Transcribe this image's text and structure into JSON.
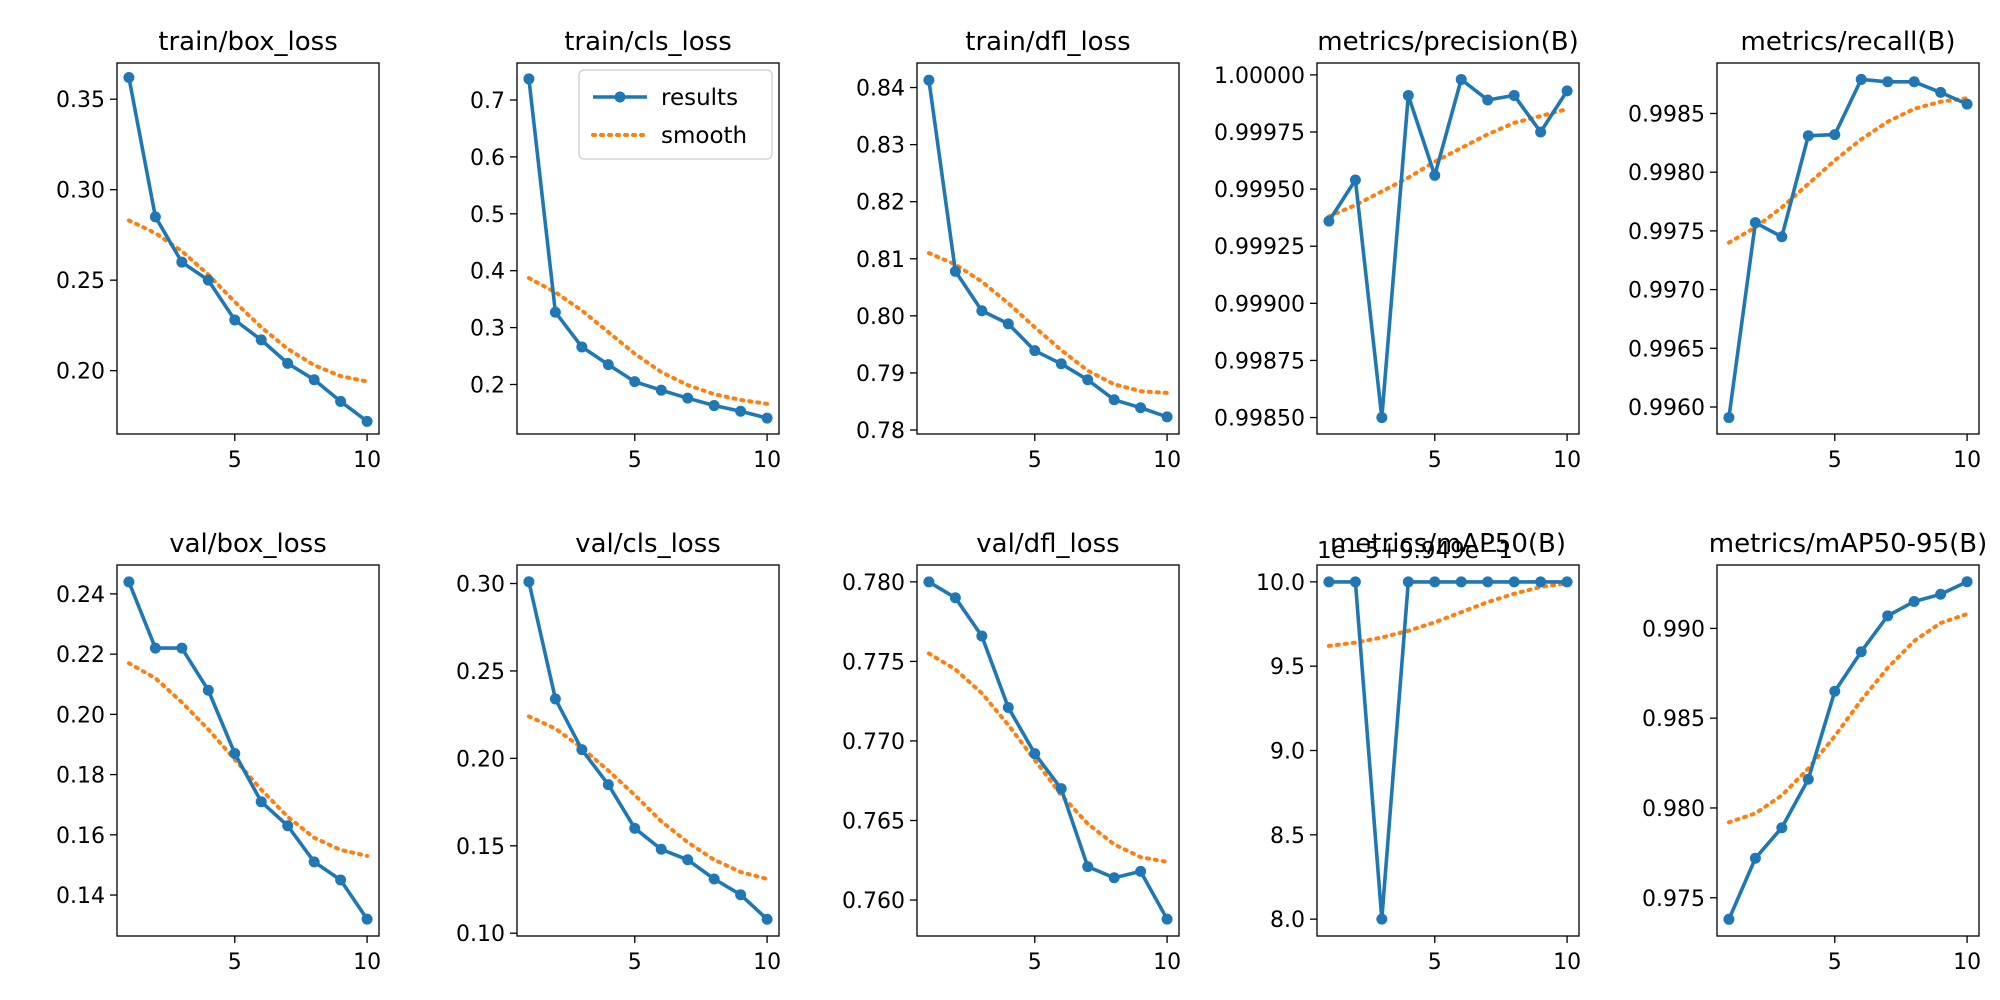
{
  "colors": {
    "results": "#1f77b4",
    "smooth": "#ff7f0e",
    "axes": "#000000",
    "background": "#ffffff"
  },
  "legend": {
    "panel": "train/cls_loss",
    "placement": "upper-right",
    "entries": [
      {
        "label": "results",
        "style": "line-with-markers"
      },
      {
        "label": "smooth",
        "style": "dotted"
      }
    ]
  },
  "chart_data": [
    {
      "type": "line",
      "title": "train/box_loss",
      "x": [
        1,
        2,
        3,
        4,
        5,
        6,
        7,
        8,
        9,
        10
      ],
      "series": [
        {
          "name": "results",
          "values": [
            0.362,
            0.285,
            0.26,
            0.25,
            0.228,
            0.217,
            0.204,
            0.195,
            0.183,
            0.172
          ]
        },
        {
          "name": "smooth",
          "values": [
            0.283,
            0.276,
            0.266,
            0.253,
            0.238,
            0.224,
            0.212,
            0.203,
            0.197,
            0.194
          ]
        }
      ],
      "xlim": [
        0.55,
        10.45
      ],
      "ylim": [
        0.165,
        0.37
      ],
      "xticks": [
        5,
        10
      ],
      "xtick_labels": [
        "5",
        "10"
      ],
      "yticks": [
        0.2,
        0.25,
        0.3,
        0.35
      ],
      "ytick_labels": [
        "0.20",
        "0.25",
        "0.30",
        "0.35"
      ],
      "offset_text": "",
      "grid": false
    },
    {
      "type": "line",
      "title": "train/cls_loss",
      "x": [
        1,
        2,
        3,
        4,
        5,
        6,
        7,
        8,
        9,
        10
      ],
      "series": [
        {
          "name": "results",
          "values": [
            0.737,
            0.327,
            0.266,
            0.235,
            0.205,
            0.19,
            0.176,
            0.163,
            0.153,
            0.141
          ]
        },
        {
          "name": "smooth",
          "values": [
            0.387,
            0.362,
            0.33,
            0.292,
            0.254,
            0.222,
            0.199,
            0.183,
            0.173,
            0.166
          ]
        }
      ],
      "xlim": [
        0.55,
        10.45
      ],
      "ylim": [
        0.113,
        0.765
      ],
      "xticks": [
        5,
        10
      ],
      "xtick_labels": [
        "5",
        "10"
      ],
      "yticks": [
        0.2,
        0.3,
        0.4,
        0.5,
        0.6,
        0.7
      ],
      "ytick_labels": [
        "0.2",
        "0.3",
        "0.4",
        "0.5",
        "0.6",
        "0.7"
      ],
      "offset_text": "",
      "grid": false
    },
    {
      "type": "line",
      "title": "train/dfl_loss",
      "x": [
        1,
        2,
        3,
        4,
        5,
        6,
        7,
        8,
        9,
        10
      ],
      "series": [
        {
          "name": "results",
          "values": [
            0.8413,
            0.8078,
            0.8009,
            0.7986,
            0.7939,
            0.7916,
            0.7888,
            0.7853,
            0.7839,
            0.7823
          ]
        },
        {
          "name": "smooth",
          "values": [
            0.811,
            0.809,
            0.806,
            0.8022,
            0.798,
            0.794,
            0.7904,
            0.788,
            0.7868,
            0.7865
          ]
        }
      ],
      "xlim": [
        0.55,
        10.45
      ],
      "ylim": [
        0.7793,
        0.8443
      ],
      "xticks": [
        5,
        10
      ],
      "xtick_labels": [
        "5",
        "10"
      ],
      "yticks": [
        0.78,
        0.79,
        0.8,
        0.81,
        0.82,
        0.83,
        0.84
      ],
      "ytick_labels": [
        "0.78",
        "0.79",
        "0.80",
        "0.81",
        "0.82",
        "0.83",
        "0.84"
      ],
      "offset_text": "",
      "grid": false
    },
    {
      "type": "line",
      "title": "metrics/precision(B)",
      "x": [
        1,
        2,
        3,
        4,
        5,
        6,
        7,
        8,
        9,
        10
      ],
      "series": [
        {
          "name": "results",
          "values": [
            0.99936,
            0.99954,
            0.9985,
            0.99991,
            0.99956,
            0.99998,
            0.99989,
            0.99991,
            0.99975,
            0.99993
          ]
        },
        {
          "name": "smooth",
          "values": [
            0.99938,
            0.99943,
            0.99949,
            0.99955,
            0.99962,
            0.99968,
            0.99974,
            0.99979,
            0.99982,
            0.99985
          ]
        }
      ],
      "xlim": [
        0.55,
        10.45
      ],
      "ylim": [
        0.998428,
        1.000052
      ],
      "xticks": [
        5,
        10
      ],
      "xtick_labels": [
        "5",
        "10"
      ],
      "yticks": [
        0.9985,
        0.99875,
        0.999,
        0.99925,
        0.9995,
        0.99975,
        1.0
      ],
      "ytick_labels": [
        "0.99850",
        "0.99875",
        "0.99900",
        "0.99925",
        "0.99950",
        "0.99975",
        "1.00000"
      ],
      "offset_text": "",
      "grid": false
    },
    {
      "type": "line",
      "title": "metrics/recall(B)",
      "x": [
        1,
        2,
        3,
        4,
        5,
        6,
        7,
        8,
        9,
        10
      ],
      "series": [
        {
          "name": "results",
          "values": [
            0.99591,
            0.99757,
            0.99745,
            0.99831,
            0.99832,
            0.99879,
            0.99877,
            0.99877,
            0.99868,
            0.99858
          ]
        },
        {
          "name": "smooth",
          "values": [
            0.9974,
            0.99753,
            0.9977,
            0.9979,
            0.9981,
            0.99828,
            0.99843,
            0.99854,
            0.9986,
            0.99863
          ]
        }
      ],
      "xlim": [
        0.55,
        10.45
      ],
      "ylim": [
        0.99577,
        0.99893
      ],
      "xticks": [
        5,
        10
      ],
      "xtick_labels": [
        "5",
        "10"
      ],
      "yticks": [
        0.996,
        0.9965,
        0.997,
        0.9975,
        0.998,
        0.9985
      ],
      "ytick_labels": [
        "0.9960",
        "0.9965",
        "0.9970",
        "0.9975",
        "0.9980",
        "0.9985"
      ],
      "offset_text": "",
      "grid": false
    },
    {
      "type": "line",
      "title": "val/box_loss",
      "x": [
        1,
        2,
        3,
        4,
        5,
        6,
        7,
        8,
        9,
        10
      ],
      "series": [
        {
          "name": "results",
          "values": [
            0.244,
            0.222,
            0.222,
            0.208,
            0.187,
            0.171,
            0.163,
            0.151,
            0.145,
            0.132
          ]
        },
        {
          "name": "smooth",
          "values": [
            0.217,
            0.212,
            0.204,
            0.195,
            0.185,
            0.175,
            0.166,
            0.159,
            0.155,
            0.153
          ]
        }
      ],
      "xlim": [
        0.55,
        10.45
      ],
      "ylim": [
        0.1264,
        0.2496
      ],
      "xticks": [
        5,
        10
      ],
      "xtick_labels": [
        "5",
        "10"
      ],
      "yticks": [
        0.14,
        0.16,
        0.18,
        0.2,
        0.22,
        0.24
      ],
      "ytick_labels": [
        "0.14",
        "0.16",
        "0.18",
        "0.20",
        "0.22",
        "0.24"
      ],
      "offset_text": "",
      "grid": false
    },
    {
      "type": "line",
      "title": "val/cls_loss",
      "x": [
        1,
        2,
        3,
        4,
        5,
        6,
        7,
        8,
        9,
        10
      ],
      "series": [
        {
          "name": "results",
          "values": [
            0.301,
            0.234,
            0.205,
            0.185,
            0.16,
            0.148,
            0.142,
            0.131,
            0.122,
            0.108
          ]
        },
        {
          "name": "smooth",
          "values": [
            0.224,
            0.217,
            0.206,
            0.193,
            0.179,
            0.164,
            0.152,
            0.142,
            0.135,
            0.131
          ]
        }
      ],
      "xlim": [
        0.55,
        10.45
      ],
      "ylim": [
        0.0984,
        0.3106
      ],
      "xticks": [
        5,
        10
      ],
      "xtick_labels": [
        "5",
        "10"
      ],
      "yticks": [
        0.1,
        0.15,
        0.2,
        0.25,
        0.3
      ],
      "ytick_labels": [
        "0.10",
        "0.15",
        "0.20",
        "0.25",
        "0.30"
      ],
      "offset_text": "",
      "grid": false
    },
    {
      "type": "line",
      "title": "val/dfl_loss",
      "x": [
        1,
        2,
        3,
        4,
        5,
        6,
        7,
        8,
        9,
        10
      ],
      "series": [
        {
          "name": "results",
          "values": [
            0.78,
            0.779,
            0.7766,
            0.7721,
            0.7692,
            0.767,
            0.7621,
            0.7614,
            0.7618,
            0.7588
          ]
        },
        {
          "name": "smooth",
          "values": [
            0.7755,
            0.7745,
            0.773,
            0.771,
            0.7688,
            0.7666,
            0.7648,
            0.7635,
            0.7627,
            0.7624
          ]
        }
      ],
      "xlim": [
        0.55,
        10.45
      ],
      "ylim": [
        0.75774,
        0.78106
      ],
      "xticks": [
        5,
        10
      ],
      "xtick_labels": [
        "5",
        "10"
      ],
      "yticks": [
        0.76,
        0.765,
        0.77,
        0.775,
        0.78
      ],
      "ytick_labels": [
        "0.760",
        "0.765",
        "0.770",
        "0.775",
        "0.780"
      ],
      "offset_text": "",
      "grid": false
    },
    {
      "type": "line",
      "title": "metrics/mAP50(B)",
      "x": [
        1,
        2,
        3,
        4,
        5,
        6,
        7,
        8,
        9,
        10
      ],
      "series": [
        {
          "name": "results",
          "values": [
            10.0,
            10.0,
            8.0,
            10.0,
            10.0,
            10.0,
            10.0,
            10.0,
            10.0,
            10.0
          ]
        },
        {
          "name": "smooth",
          "values": [
            9.62,
            9.64,
            9.67,
            9.71,
            9.76,
            9.82,
            9.88,
            9.93,
            9.97,
            9.99
          ]
        }
      ],
      "xlim": [
        0.55,
        10.45
      ],
      "ylim": [
        7.9,
        10.1
      ],
      "xticks": [
        5,
        10
      ],
      "xtick_labels": [
        "5",
        "10"
      ],
      "yticks": [
        8.0,
        8.5,
        9.0,
        9.5,
        10.0
      ],
      "ytick_labels": [
        "8.0",
        "8.5",
        "9.0",
        "9.5",
        "10.0"
      ],
      "offset_text": "1e−5+9.949e−1",
      "grid": false
    },
    {
      "type": "line",
      "title": "metrics/mAP50-95(B)",
      "x": [
        1,
        2,
        3,
        4,
        5,
        6,
        7,
        8,
        9,
        10
      ],
      "series": [
        {
          "name": "results",
          "values": [
            0.9738,
            0.9772,
            0.9789,
            0.9816,
            0.9865,
            0.9887,
            0.9907,
            0.9915,
            0.9919,
            0.9926
          ]
        },
        {
          "name": "smooth",
          "values": [
            0.9792,
            0.9797,
            0.9807,
            0.9822,
            0.984,
            0.986,
            0.9878,
            0.9893,
            0.9903,
            0.9908
          ]
        }
      ],
      "xlim": [
        0.55,
        10.45
      ],
      "ylim": [
        0.97287,
        0.99353
      ],
      "xticks": [
        5,
        10
      ],
      "xtick_labels": [
        "5",
        "10"
      ],
      "yticks": [
        0.975,
        0.98,
        0.985,
        0.99
      ],
      "ytick_labels": [
        "0.975",
        "0.980",
        "0.985",
        "0.990"
      ],
      "offset_text": "",
      "grid": false
    }
  ]
}
